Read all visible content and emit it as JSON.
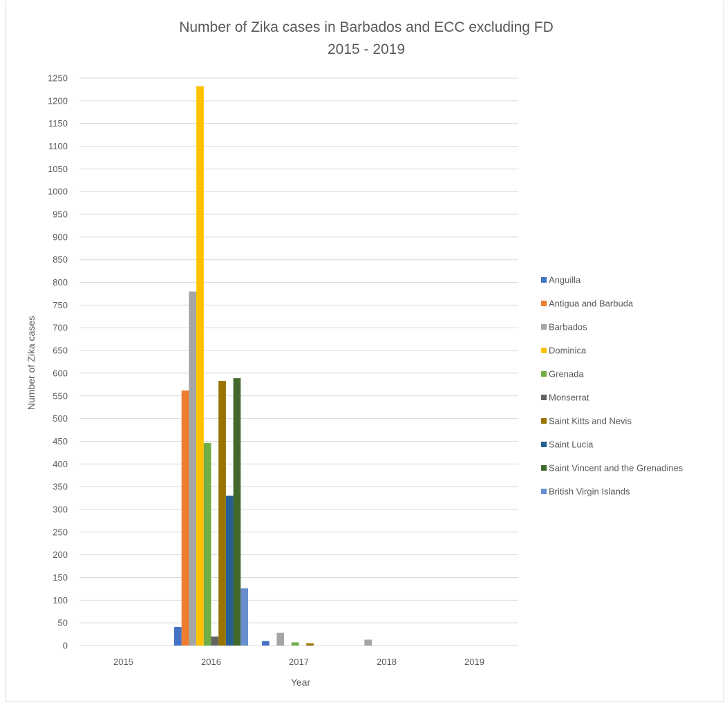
{
  "chart_data": {
    "type": "bar",
    "title": "Number of Zika cases in Barbados and ECC excluding FD",
    "subtitle": "2015 - 2019",
    "xlabel": "Year",
    "ylabel": "Number of Zika cases",
    "categories": [
      "2015",
      "2016",
      "2017",
      "2018",
      "2019"
    ],
    "ylim": [
      0,
      1250
    ],
    "yticks": [
      0,
      50,
      100,
      150,
      200,
      250,
      300,
      350,
      400,
      450,
      500,
      550,
      600,
      650,
      700,
      750,
      800,
      850,
      900,
      950,
      1000,
      1050,
      1100,
      1150,
      1200,
      1250
    ],
    "grid": true,
    "legend_position": "right",
    "series": [
      {
        "name": "Anguilla",
        "color": "#4472c4",
        "values": [
          0,
          41,
          10,
          0,
          0
        ]
      },
      {
        "name": "Antigua and Barbuda",
        "color": "#ed7d31",
        "values": [
          0,
          562,
          0,
          0,
          0
        ]
      },
      {
        "name": "Barbados",
        "color": "#a5a5a5",
        "values": [
          0,
          780,
          28,
          13,
          0
        ]
      },
      {
        "name": "Dominica",
        "color": "#ffc000",
        "values": [
          0,
          1232,
          0,
          0,
          0
        ]
      },
      {
        "name": "Grenada",
        "color": "#70ad47",
        "values": [
          0,
          446,
          7,
          0,
          0
        ]
      },
      {
        "name": "Monserrat",
        "color": "#636363",
        "values": [
          0,
          20,
          0,
          0,
          0
        ]
      },
      {
        "name": "Saint Kitts and Nevis",
        "color": "#997300",
        "values": [
          0,
          583,
          5,
          0,
          0
        ]
      },
      {
        "name": "Saint Lucia",
        "color": "#255e91",
        "values": [
          0,
          330,
          0,
          0,
          0
        ]
      },
      {
        "name": "Saint Vincent and the Grenadines",
        "color": "#43682b",
        "values": [
          0,
          589,
          0,
          0,
          0
        ]
      },
      {
        "name": "British Virgin Islands",
        "color": "#698ed0",
        "values": [
          0,
          126,
          0,
          0,
          0
        ]
      }
    ]
  }
}
